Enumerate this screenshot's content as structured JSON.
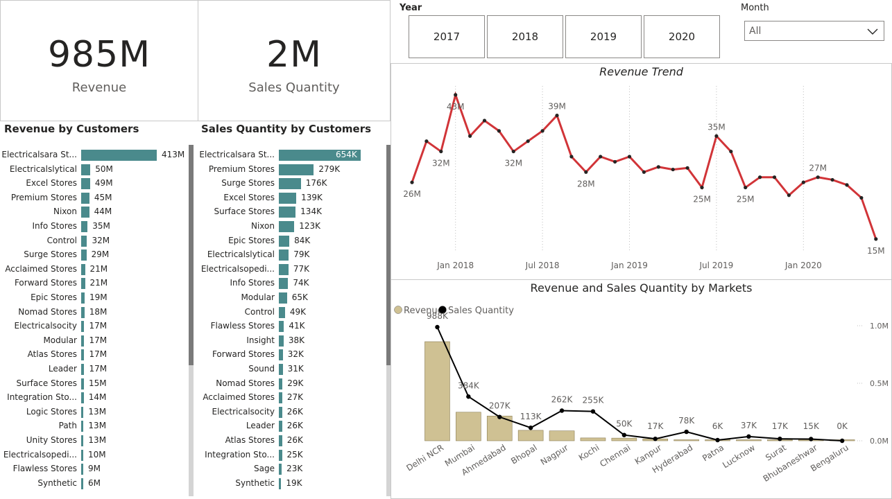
{
  "kpis": {
    "revenue": {
      "value": "985M",
      "label": "Revenue"
    },
    "quantity": {
      "value": "2M",
      "label": "Sales Quantity"
    }
  },
  "filters": {
    "year_title": "Year",
    "years": [
      "2017",
      "2018",
      "2019",
      "2020"
    ],
    "month_title": "Month",
    "month_selected": "All"
  },
  "revenue_by_customers": {
    "title": "Revenue by Customers",
    "rows": [
      {
        "name": "Electricalsara St...",
        "label": "413M",
        "value": 413
      },
      {
        "name": "Electricalslytical",
        "label": "50M",
        "value": 50
      },
      {
        "name": "Excel Stores",
        "label": "49M",
        "value": 49
      },
      {
        "name": "Premium Stores",
        "label": "45M",
        "value": 45
      },
      {
        "name": "Nixon",
        "label": "44M",
        "value": 44
      },
      {
        "name": "Info Stores",
        "label": "35M",
        "value": 35
      },
      {
        "name": "Control",
        "label": "32M",
        "value": 32
      },
      {
        "name": "Surge Stores",
        "label": "29M",
        "value": 29
      },
      {
        "name": "Acclaimed Stores",
        "label": "21M",
        "value": 21
      },
      {
        "name": "Forward Stores",
        "label": "21M",
        "value": 21
      },
      {
        "name": "Epic Stores",
        "label": "19M",
        "value": 19
      },
      {
        "name": "Nomad Stores",
        "label": "18M",
        "value": 18
      },
      {
        "name": "Electricalsocity",
        "label": "17M",
        "value": 17
      },
      {
        "name": "Modular",
        "label": "17M",
        "value": 17
      },
      {
        "name": "Atlas Stores",
        "label": "17M",
        "value": 17
      },
      {
        "name": "Leader",
        "label": "17M",
        "value": 17
      },
      {
        "name": "Surface Stores",
        "label": "15M",
        "value": 15
      },
      {
        "name": "Integration Sto...",
        "label": "14M",
        "value": 14
      },
      {
        "name": "Logic Stores",
        "label": "13M",
        "value": 13
      },
      {
        "name": "Path",
        "label": "13M",
        "value": 13
      },
      {
        "name": "Unity Stores",
        "label": "13M",
        "value": 13
      },
      {
        "name": "Electricalsopedi...",
        "label": "10M",
        "value": 10
      },
      {
        "name": "Flawless Stores",
        "label": "9M",
        "value": 9
      },
      {
        "name": "Synthetic",
        "label": "6M",
        "value": 6
      }
    ]
  },
  "quantity_by_customers": {
    "title": "Sales Quantity by Customers",
    "rows": [
      {
        "name": "Electricalsara St...",
        "label": "654K",
        "value": 654
      },
      {
        "name": "Premium Stores",
        "label": "279K",
        "value": 279
      },
      {
        "name": "Surge Stores",
        "label": "176K",
        "value": 176
      },
      {
        "name": "Excel Stores",
        "label": "139K",
        "value": 139
      },
      {
        "name": "Surface Stores",
        "label": "134K",
        "value": 134
      },
      {
        "name": "Nixon",
        "label": "123K",
        "value": 123
      },
      {
        "name": "Epic Stores",
        "label": "84K",
        "value": 84
      },
      {
        "name": "Electricalslytical",
        "label": "79K",
        "value": 79
      },
      {
        "name": "Electricalsopedi...",
        "label": "77K",
        "value": 77
      },
      {
        "name": "Info Stores",
        "label": "74K",
        "value": 74
      },
      {
        "name": "Modular",
        "label": "65K",
        "value": 65
      },
      {
        "name": "Control",
        "label": "49K",
        "value": 49
      },
      {
        "name": "Flawless Stores",
        "label": "41K",
        "value": 41
      },
      {
        "name": "Insight",
        "label": "38K",
        "value": 38
      },
      {
        "name": "Forward Stores",
        "label": "32K",
        "value": 32
      },
      {
        "name": "Sound",
        "label": "31K",
        "value": 31
      },
      {
        "name": "Nomad Stores",
        "label": "29K",
        "value": 29
      },
      {
        "name": "Acclaimed Stores",
        "label": "27K",
        "value": 27
      },
      {
        "name": "Electricalsocity",
        "label": "26K",
        "value": 26
      },
      {
        "name": "Leader",
        "label": "26K",
        "value": 26
      },
      {
        "name": "Atlas Stores",
        "label": "26K",
        "value": 26
      },
      {
        "name": "Integration Sto...",
        "label": "25K",
        "value": 25
      },
      {
        "name": "Sage",
        "label": "23K",
        "value": 23
      },
      {
        "name": "Synthetic",
        "label": "19K",
        "value": 19
      }
    ]
  },
  "chart_data": [
    {
      "type": "line",
      "title": "Revenue Trend",
      "x_ticks": [
        "Jan 2018",
        "Jul 2018",
        "Jan 2019",
        "Jul 2019",
        "Jan 2020"
      ],
      "x": [
        "2017-10",
        "2017-11",
        "2017-12",
        "2018-01",
        "2018-02",
        "2018-03",
        "2018-04",
        "2018-05",
        "2018-06",
        "2018-07",
        "2018-08",
        "2018-09",
        "2018-10",
        "2018-11",
        "2018-12",
        "2019-01",
        "2019-02",
        "2019-03",
        "2019-04",
        "2019-05",
        "2019-06",
        "2019-07",
        "2019-08",
        "2019-09",
        "2019-10",
        "2019-11",
        "2019-12",
        "2020-01",
        "2020-02",
        "2020-03",
        "2020-04",
        "2020-05",
        "2020-06"
      ],
      "values": [
        26,
        34,
        32,
        43,
        35,
        38,
        36,
        32,
        34,
        36,
        39,
        31,
        28,
        31,
        30,
        31,
        28,
        29,
        28.5,
        28.8,
        25,
        35,
        32,
        25,
        27,
        27,
        23.5,
        26,
        27,
        26.5,
        25.5,
        23,
        15
      ],
      "point_labels": {
        "0": "26M",
        "2": "32M",
        "3": "43M",
        "7": "32M",
        "10": "39M",
        "12": "28M",
        "20": "25M",
        "21": "35M",
        "23": "25M",
        "28": "27M",
        "32": "15M"
      },
      "ylim": [
        10,
        45
      ],
      "line_color": "#d13438",
      "grid": false
    },
    {
      "type": "bar",
      "title": "Revenue and Sales Quantity by Markets",
      "legend": [
        "Revenue",
        "Sales Quantity"
      ],
      "legend_position": "top-left",
      "categories": [
        "Delhi NCR",
        "Mumbai",
        "Ahmedabad",
        "Bhopal",
        "Nagpur",
        "Kochi",
        "Chennai",
        "Kanpur",
        "Hyderabad",
        "Patna",
        "Lucknow",
        "Surat",
        "Bhubaneshwar",
        "Bengaluru"
      ],
      "series": [
        {
          "name": "Revenue",
          "type": "bar",
          "color": "#cfc193",
          "values": [
            520,
            150,
            130,
            55,
            52,
            15,
            14,
            10,
            5,
            2,
            2,
            1,
            0.5,
            0.3
          ]
        },
        {
          "name": "Sales Quantity",
          "type": "line",
          "color": "#000000",
          "values": [
            988,
            384,
            207,
            113,
            262,
            255,
            50,
            17,
            78,
            6,
            37,
            17,
            15,
            0
          ],
          "labels": [
            "988K",
            "384K",
            "207K",
            "113K",
            "262K",
            "255K",
            "50K",
            "17K",
            "78K",
            "6K",
            "37K",
            "17K",
            "15K",
            "0K"
          ]
        }
      ],
      "y2_ticks": [
        "1.0M",
        "0.5M",
        "0.0M"
      ],
      "y2lim": [
        0,
        1000
      ]
    }
  ]
}
